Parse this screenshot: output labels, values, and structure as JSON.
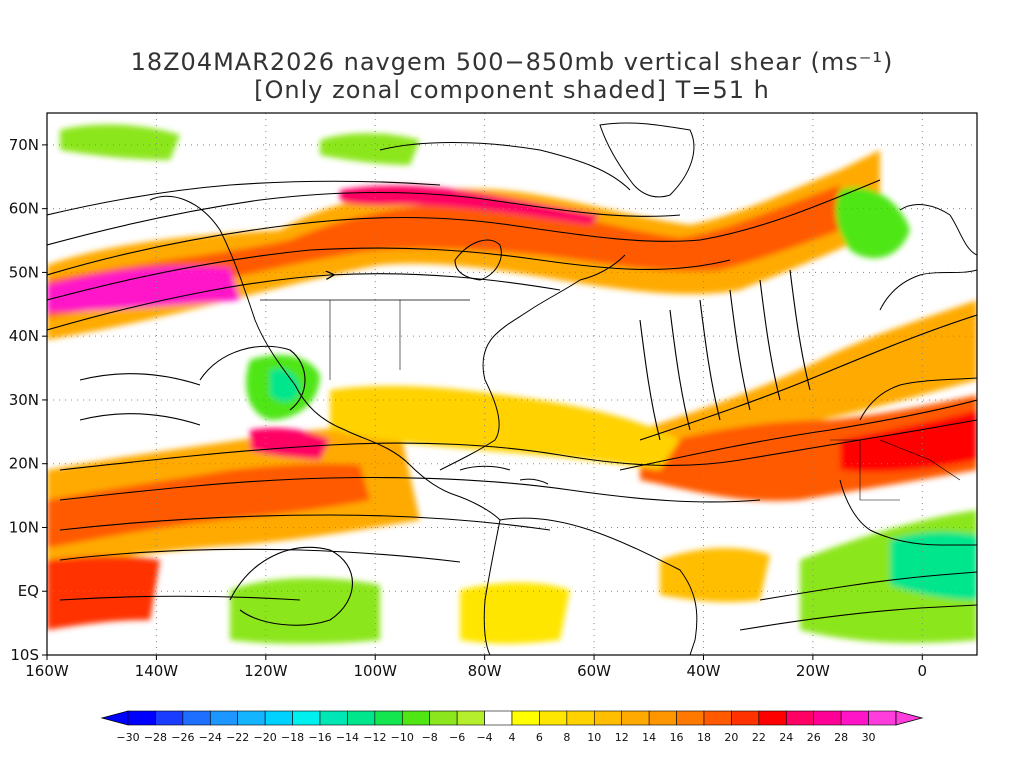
{
  "title": {
    "line1": "18Z04MAR2026 navgem 500−850mb vertical shear (ms⁻¹)",
    "line2": "[Only zonal component shaded] T=51 h"
  },
  "axes": {
    "lon_ticks": [
      "160W",
      "140W",
      "120W",
      "100W",
      "80W",
      "60W",
      "40W",
      "20W",
      "0"
    ],
    "lon_values": [
      -160,
      -140,
      -120,
      -100,
      -80,
      -60,
      -40,
      -20,
      0
    ],
    "lat_ticks": [
      "70N",
      "60N",
      "50N",
      "40N",
      "30N",
      "20N",
      "10N",
      "EQ",
      "10S"
    ],
    "lat_values": [
      70,
      60,
      50,
      40,
      30,
      20,
      10,
      0,
      -10
    ],
    "lon_range": [
      -160,
      10
    ],
    "lat_range": [
      -10,
      75
    ],
    "grid": "dotted"
  },
  "colorbar": {
    "labels": [
      "-30",
      "-28",
      "-26",
      "-24",
      "-22",
      "-20",
      "-18",
      "-16",
      "-14",
      "-12",
      "-10",
      "-8",
      "-6",
      "-4",
      "4",
      "6",
      "8",
      "10",
      "12",
      "14",
      "16",
      "18",
      "20",
      "22",
      "24",
      "26",
      "28",
      "30"
    ],
    "colors": [
      "#0000ff",
      "#1a3cff",
      "#1e6eff",
      "#1e96ff",
      "#14b4ff",
      "#00d2ff",
      "#00f0f0",
      "#00e6b4",
      "#00e68c",
      "#14e650",
      "#50e614",
      "#8ce61e",
      "#b4ee2d",
      "#ffffff",
      "#ffff00",
      "#ffe600",
      "#ffd200",
      "#ffbe00",
      "#ffaa00",
      "#ff9600",
      "#ff7800",
      "#ff5a00",
      "#ff3200",
      "#ff0000",
      "#ff0064",
      "#ff0096",
      "#ff14c8",
      "#ff3cdc"
    ]
  },
  "colors": {
    "background": "#ffffff",
    "coast": "#000000",
    "streamline": "#000000"
  }
}
